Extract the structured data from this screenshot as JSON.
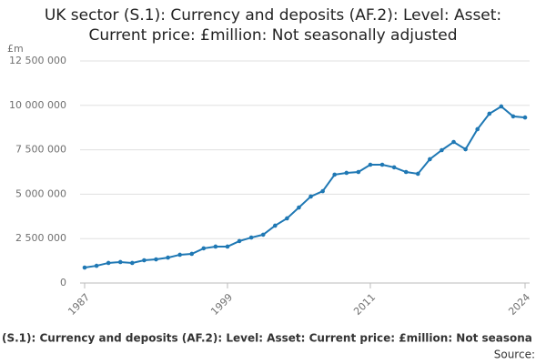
{
  "chart_data": {
    "type": "line",
    "title": [
      "UK sector (S.1): Currency and deposits (AF.2): Level: Asset:",
      "Current price: £million: Not seasonally adjusted"
    ],
    "y_label": "£m",
    "footer": "(S.1): Currency and deposits (AF.2): Level: Asset: Current price: £million: Not seasona",
    "source": "Source:",
    "x": [
      1987,
      1988,
      1989,
      1990,
      1991,
      1992,
      1993,
      1994,
      1995,
      1996,
      1997,
      1998,
      1999,
      2000,
      2001,
      2002,
      2003,
      2004,
      2005,
      2006,
      2007,
      2008,
      2009,
      2010,
      2011,
      2012,
      2013,
      2014,
      2015,
      2016,
      2017,
      2018,
      2019,
      2020,
      2021,
      2022,
      2023,
      2024
    ],
    "series": [
      {
        "name": "UK sector (S.1): Currency and deposits (AF.2)",
        "color": "#1f78b4",
        "values": [
          870000,
          970000,
          1130000,
          1180000,
          1130000,
          1280000,
          1330000,
          1430000,
          1590000,
          1640000,
          1950000,
          2050000,
          2050000,
          2360000,
          2560000,
          2720000,
          3230000,
          3640000,
          4250000,
          4870000,
          5170000,
          6100000,
          6200000,
          6250000,
          6660000,
          6660000,
          6510000,
          6250000,
          6150000,
          6970000,
          7480000,
          7940000,
          7530000,
          8660000,
          9530000,
          9940000,
          9380000,
          9320000
        ]
      }
    ],
    "xlim": [
      1987,
      2024
    ],
    "xticks": [
      1987,
      1999,
      2011,
      2024
    ],
    "ylim": [
      0,
      12500000
    ],
    "yticks": [
      0,
      {
        "value": 2500000,
        "label": "2 500 000"
      },
      {
        "value": 5000000,
        "label": "5 000 000"
      },
      {
        "value": 7500000,
        "label": "7 500 000"
      },
      {
        "value": 10000000,
        "label": "10 000 000"
      },
      {
        "value": 12500000,
        "label": "12 500 000"
      }
    ],
    "grid": true
  }
}
